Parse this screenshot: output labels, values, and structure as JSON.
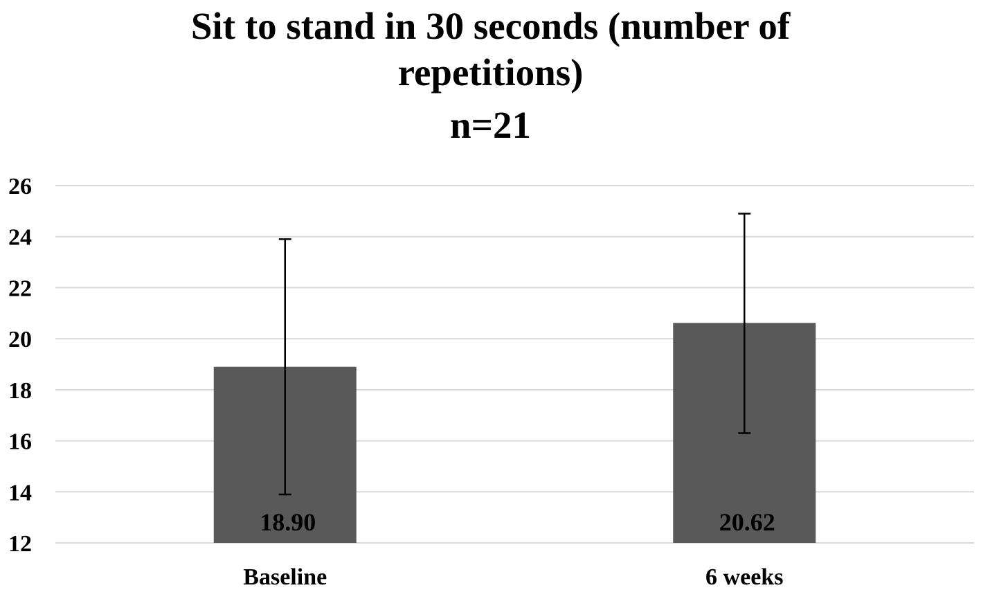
{
  "chart_data": {
    "type": "bar",
    "title_lines": [
      "Sit to stand in 30 seconds (number of",
      "repetitions)",
      "n=21"
    ],
    "categories": [
      "Baseline",
      "6 weeks"
    ],
    "values": [
      18.9,
      20.62
    ],
    "value_labels": [
      "18.90",
      "20.62"
    ],
    "error_bars": [
      {
        "low": 13.9,
        "high": 23.9
      },
      {
        "low": 16.3,
        "high": 24.9
      }
    ],
    "ylim": [
      12,
      26
    ],
    "yticks": [
      12,
      14,
      16,
      18,
      20,
      22,
      24,
      26
    ],
    "grid": true,
    "xlabel": "",
    "ylabel": "",
    "bar_color": "#595959",
    "grid_color": "#d9d9d9"
  }
}
